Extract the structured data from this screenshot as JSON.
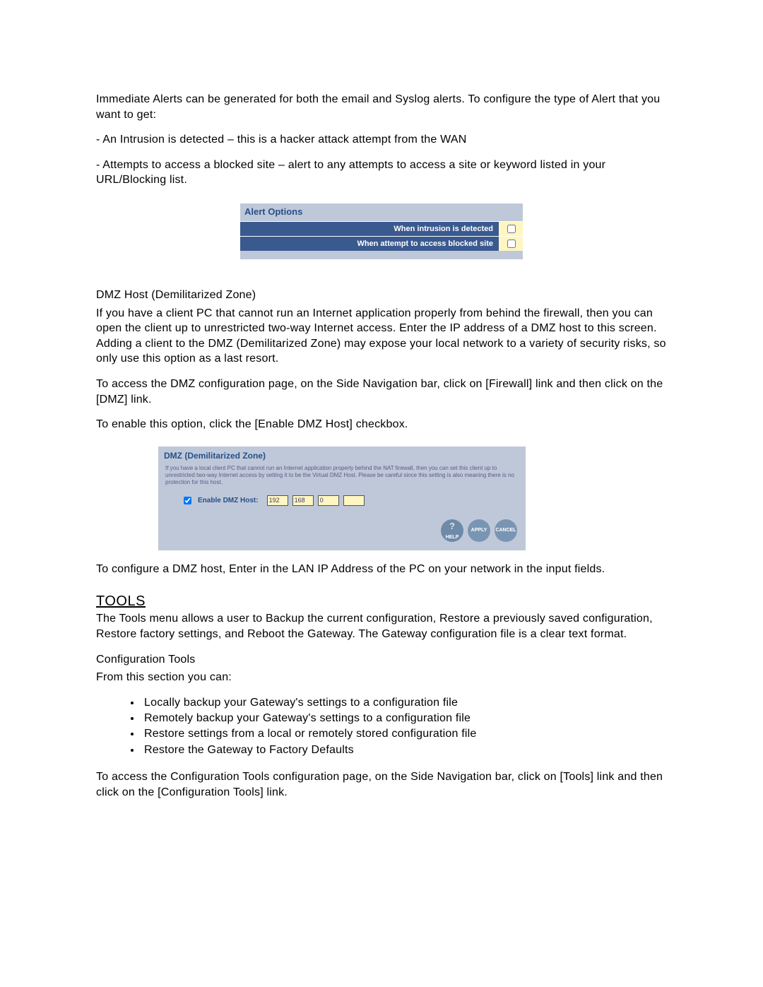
{
  "intro": {
    "p1": "Immediate Alerts can be generated for both the email and Syslog alerts.   To configure the type of Alert that you want to get:",
    "li1": "- An Intrusion is detected – this is a hacker attack attempt from the WAN",
    "li2": "- Attempts to access a blocked site – alert to any attempts to access a site or keyword listed in your URL/Blocking list."
  },
  "alert_panel": {
    "title": "Alert Options",
    "row1_label": "When intrusion is detected",
    "row2_label": "When attempt to access blocked site",
    "bg": "#bfc8d9",
    "header_bg": "#3a5a8f",
    "cell_bg": "#fff6c2",
    "title_color": "#274f89"
  },
  "dmz": {
    "heading": "DMZ Host (Demilitarized Zone)",
    "p1": "If you have a client PC that cannot run an Internet application properly from behind the firewall, then you can open the client up to unrestricted two-way Internet access. Enter the IP address of a DMZ host to this screen.  Adding a client to the DMZ (Demilitarized Zone) may expose your local network to a variety of security risks, so only use this option as a last resort.",
    "p2": "To access the DMZ configuration page, on the Side Navigation bar, click on [Firewall] link and then click on the [DMZ] link.",
    "p3": "To enable this option, click the [Enable DMZ Host] checkbox.",
    "panel_title": "DMZ (Demilitarized Zone)",
    "panel_help": "If you have a local client PC that cannot run an Internet application properly behind the NAT firewall, then you can set this client up to unrestricted two-way Internet access by setting it to be the Virtual DMZ Host. Please be careful since this setting is also meaning there is no protection for this host.",
    "checkbox_label": "Enable DMZ Host:",
    "ip": [
      "192",
      "168",
      "0",
      ""
    ],
    "btn_help": "HELP",
    "btn_apply": "APPLY",
    "btn_cancel": "CANCEL",
    "p4": "To configure a DMZ host, Enter in the LAN IP Address of the PC on your network in the input fields."
  },
  "tools": {
    "heading": "TOOLS",
    "p1": "The Tools menu allows a user to Backup the current configuration, Restore a previously saved configuration, Restore factory settings, and Reboot the Gateway.  The Gateway configuration file is a clear text format.",
    "subhead": "Configuration Tools",
    "p2": "From this section you can:",
    "bullets": [
      "Locally backup your Gateway's settings to a configuration file",
      "Remotely backup your Gateway's settings to a configuration file",
      "Restore settings from a local or remotely stored configuration file",
      "Restore the Gateway to Factory Defaults"
    ],
    "p3": "To access the Configuration Tools configuration page, on the Side Navigation bar, click on [Tools] link and then click on the [Configuration Tools] link."
  }
}
